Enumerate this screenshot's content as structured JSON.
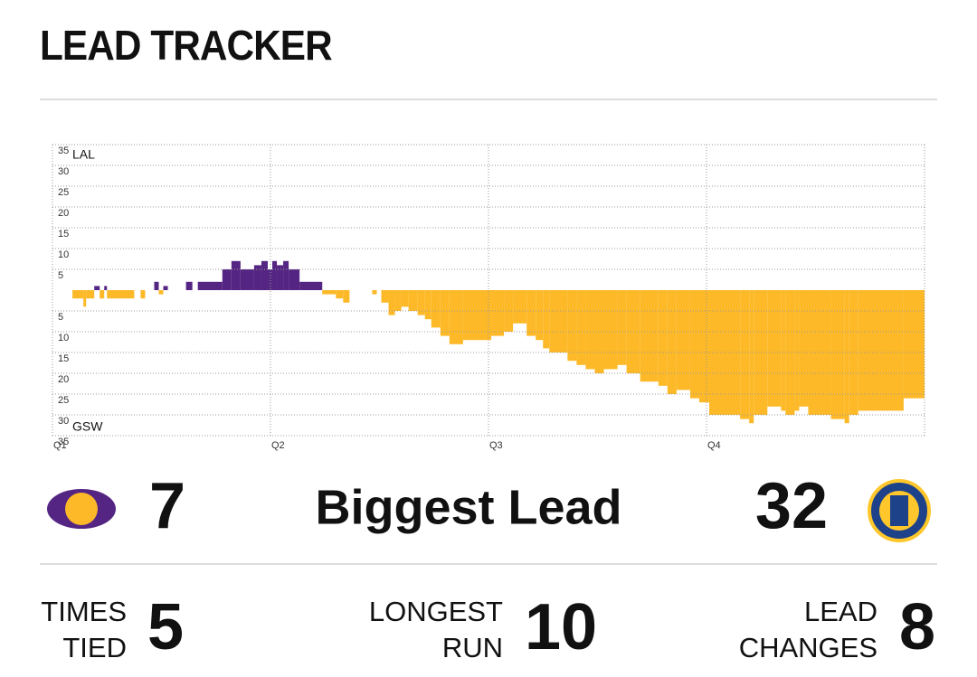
{
  "header": {
    "title": "LEAD TRACKER"
  },
  "chart_data": {
    "type": "lead-bar",
    "annotations": [
      "LAL",
      "GSW"
    ],
    "positive_color": "#552583",
    "negative_color": "#FDB927",
    "xlim": [
      0,
      48
    ],
    "xticks": [
      {
        "value": 0,
        "label": "Q1"
      },
      {
        "value": 12,
        "label": "Q2"
      },
      {
        "value": 24,
        "label": "Q3"
      },
      {
        "value": 36,
        "label": "Q4"
      }
    ],
    "ylim": [
      -35,
      35
    ],
    "yticks": [
      35,
      30,
      25,
      20,
      15,
      10,
      5,
      {
        "value": -5,
        "label": "5"
      },
      {
        "value": -10,
        "label": "10"
      },
      {
        "value": -15,
        "label": "15"
      },
      {
        "value": -20,
        "label": "20"
      },
      {
        "value": -25,
        "label": "25"
      },
      {
        "value": -30,
        "label": "30"
      },
      {
        "value": -35,
        "label": "35"
      }
    ],
    "grid": true,
    "x": [
      1.1,
      1.7,
      1.85,
      2.3,
      2.6,
      2.85,
      3,
      4.5,
      4.85,
      5.1,
      5.6,
      5.85,
      6.1,
      6.35,
      7.35,
      7.7,
      8,
      9.35,
      9.85,
      10.35,
      11.1,
      11.5,
      11.85,
      12.1,
      12.35,
      12.7,
      13,
      13.6,
      14.85,
      15.6,
      16,
      16.35,
      17.6,
      17.85,
      18.1,
      18.5,
      18.85,
      19.2,
      19.6,
      20.1,
      20.5,
      20.85,
      21.35,
      21.85,
      22.6,
      24.15,
      24.85,
      25.35,
      26.1,
      26.6,
      27,
      27.35,
      28.35,
      28.85,
      29.35,
      29.85,
      30.35,
      31.1,
      31.6,
      32.35,
      33.35,
      33.85,
      34.35,
      35.1,
      35.6,
      36.15,
      37.85,
      38.35,
      38.6,
      39.35,
      40.1,
      40.35,
      40.85,
      41.1,
      41.6,
      42.85,
      43.6,
      43.85,
      44.35,
      46.85
    ],
    "values": [
      -2,
      -4,
      -2,
      1,
      -2,
      1,
      -2,
      0,
      -2,
      0,
      2,
      -1,
      1,
      0,
      2,
      0,
      2,
      5,
      7,
      5,
      6,
      7,
      5,
      7,
      6,
      7,
      5,
      2,
      -1,
      -2,
      -3,
      0,
      -1,
      0,
      -3,
      -6,
      -5,
      -4,
      -5,
      -6,
      -7,
      -9,
      -11,
      -13,
      -12,
      -11,
      -10,
      -8,
      -11,
      -12,
      -14,
      -15,
      -17,
      -18,
      -19,
      -20,
      -19,
      -18,
      -20,
      -22,
      -23,
      -25,
      -24,
      -26,
      -27,
      -30,
      -31,
      -32,
      -30,
      -28,
      -29,
      -30,
      -29,
      -28,
      -30,
      -31,
      -32,
      -30,
      -29,
      -26
    ]
  },
  "biggest_lead": {
    "label": "Biggest Lead",
    "home": 7,
    "away": 32
  },
  "stats": [
    {
      "label_lines": [
        "TIMES",
        "TIED"
      ],
      "value": 5
    },
    {
      "label_lines": [
        "LONGEST",
        "RUN"
      ],
      "value": 10
    },
    {
      "label_lines": [
        "LEAD",
        "CHANGES"
      ],
      "value": 8
    }
  ]
}
